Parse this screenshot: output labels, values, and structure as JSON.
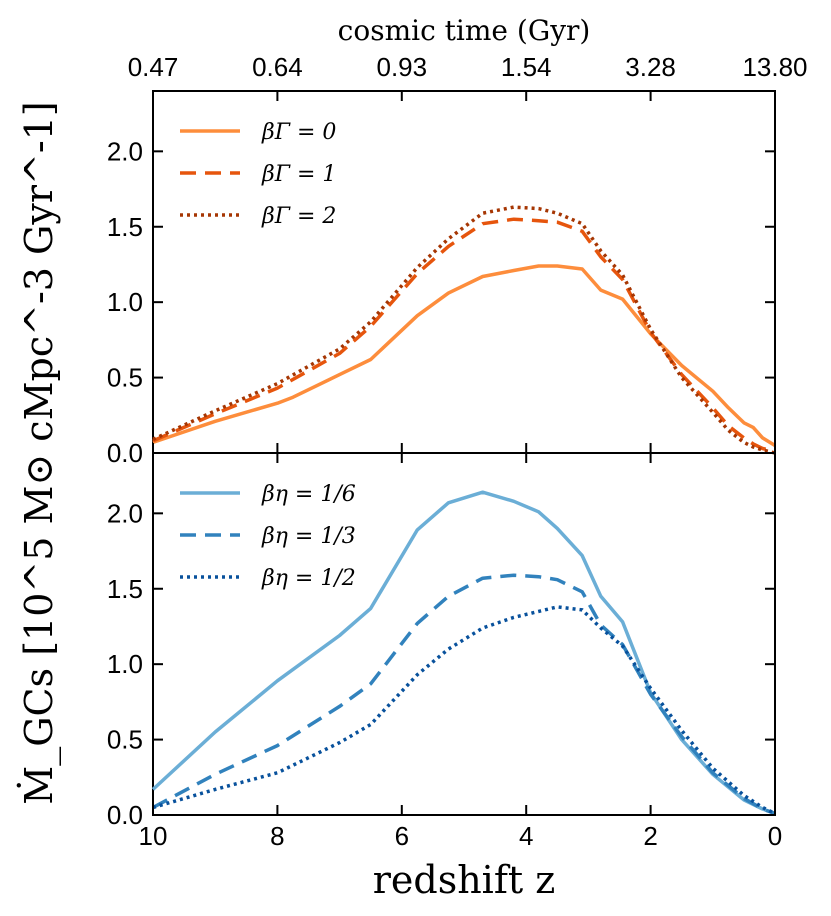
{
  "chart_data": {
    "type": "line",
    "x_axis": {
      "label": "redshift z",
      "range": [
        10,
        0
      ],
      "ticks": [
        10,
        8,
        6,
        4,
        2,
        0
      ]
    },
    "top_axis": {
      "label": "cosmic time (Gyr)",
      "tick_labels": [
        "0.47",
        "0.64",
        "0.93",
        "1.54",
        "3.28",
        "13.80"
      ],
      "tick_redshifts": [
        10,
        8,
        6,
        4,
        2,
        0
      ]
    },
    "y_axis": {
      "label": "Ṁ_GCs [10^5 M⊙ cMpc^-3 Gyr^-1]",
      "range": [
        0,
        2.4
      ],
      "ticks": [
        "0.0",
        "0.5",
        "1.0",
        "1.5",
        "2.0"
      ],
      "tick_values": [
        0,
        0.5,
        1.0,
        1.5,
        2.0
      ]
    },
    "panels": [
      {
        "name": "top",
        "series": [
          {
            "name": "βΓ = 0",
            "legend": "β_Γ = 0",
            "color": "#fd8d3c",
            "style": "solid",
            "x": [
              10,
              9,
              8,
              7.75,
              7,
              6.5,
              5.75,
              5.25,
              4.7,
              4.2,
              3.8,
              3.5,
              3.1,
              2.8,
              2.45,
              2.0,
              1.5,
              1.0,
              0.75,
              0.5,
              0.35,
              0.2,
              0
            ],
            "y": [
              0.07,
              0.21,
              0.33,
              0.37,
              0.52,
              0.62,
              0.91,
              1.06,
              1.17,
              1.21,
              1.24,
              1.24,
              1.22,
              1.08,
              1.02,
              0.79,
              0.58,
              0.41,
              0.3,
              0.2,
              0.17,
              0.1,
              0.05
            ]
          },
          {
            "name": "βΓ = 1",
            "legend": "β_Γ = 1",
            "color": "#e6550d",
            "style": "dashed",
            "x": [
              10,
              9,
              8,
              7,
              6.5,
              5.75,
              5.25,
              4.7,
              4.2,
              3.8,
              3.5,
              3.1,
              2.8,
              2.45,
              2.0,
              1.5,
              1.0,
              0.75,
              0.5,
              0.35,
              0.2,
              0
            ],
            "y": [
              0.08,
              0.26,
              0.43,
              0.66,
              0.84,
              1.19,
              1.37,
              1.52,
              1.55,
              1.54,
              1.53,
              1.47,
              1.3,
              1.15,
              0.8,
              0.52,
              0.3,
              0.18,
              0.1,
              0.06,
              0.03,
              0.01
            ]
          },
          {
            "name": "βΓ = 2",
            "legend": "β_Γ = 2",
            "color": "#a63603",
            "style": "dotted",
            "x": [
              10,
              9,
              8,
              7,
              6.5,
              5.75,
              5.25,
              4.7,
              4.2,
              3.8,
              3.5,
              3.1,
              2.8,
              2.45,
              2.0,
              1.5,
              1.0,
              0.75,
              0.5,
              0.35,
              0.2,
              0
            ],
            "y": [
              0.09,
              0.28,
              0.46,
              0.69,
              0.87,
              1.23,
              1.42,
              1.59,
              1.63,
              1.62,
              1.59,
              1.52,
              1.34,
              1.18,
              0.82,
              0.5,
              0.27,
              0.15,
              0.07,
              0.04,
              0.02,
              0.0
            ]
          }
        ]
      },
      {
        "name": "bottom",
        "series": [
          {
            "name": "βη = 1/6",
            "legend": "β_η = 1/6",
            "color": "#6baed6",
            "style": "solid",
            "x": [
              10,
              9,
              8,
              7,
              6.5,
              5.75,
              5.25,
              4.7,
              4.2,
              3.8,
              3.5,
              3.1,
              2.8,
              2.45,
              2.0,
              1.5,
              1.0,
              0.5,
              0.2,
              0
            ],
            "y": [
              0.17,
              0.55,
              0.89,
              1.19,
              1.37,
              1.89,
              2.07,
              2.14,
              2.08,
              2.01,
              1.9,
              1.72,
              1.45,
              1.28,
              0.81,
              0.5,
              0.27,
              0.1,
              0.04,
              0.01
            ]
          },
          {
            "name": "βη = 1/3",
            "legend": "β_η = 1/3",
            "color": "#3182bd",
            "style": "dashed",
            "x": [
              10,
              9,
              8,
              7,
              6.5,
              5.75,
              5.25,
              4.7,
              4.2,
              3.8,
              3.5,
              3.1,
              2.8,
              2.45,
              2.0,
              1.5,
              1.0,
              0.5,
              0.2,
              0
            ],
            "y": [
              0.05,
              0.27,
              0.46,
              0.72,
              0.87,
              1.27,
              1.45,
              1.57,
              1.59,
              1.58,
              1.56,
              1.48,
              1.26,
              1.13,
              0.8,
              0.52,
              0.28,
              0.11,
              0.04,
              0.01
            ]
          },
          {
            "name": "βη = 1/2",
            "legend": "β_η = 1/2",
            "color": "#08519c",
            "style": "dotted",
            "x": [
              10,
              9,
              8,
              7,
              6.5,
              5.75,
              5.25,
              4.7,
              4.2,
              3.8,
              3.5,
              3.1,
              2.8,
              2.45,
              2.0,
              1.5,
              1.0,
              0.5,
              0.2,
              0
            ],
            "y": [
              0.05,
              0.17,
              0.28,
              0.48,
              0.6,
              0.93,
              1.1,
              1.24,
              1.31,
              1.35,
              1.38,
              1.36,
              1.24,
              1.12,
              0.84,
              0.56,
              0.31,
              0.13,
              0.05,
              0.01
            ]
          }
        ]
      }
    ]
  }
}
